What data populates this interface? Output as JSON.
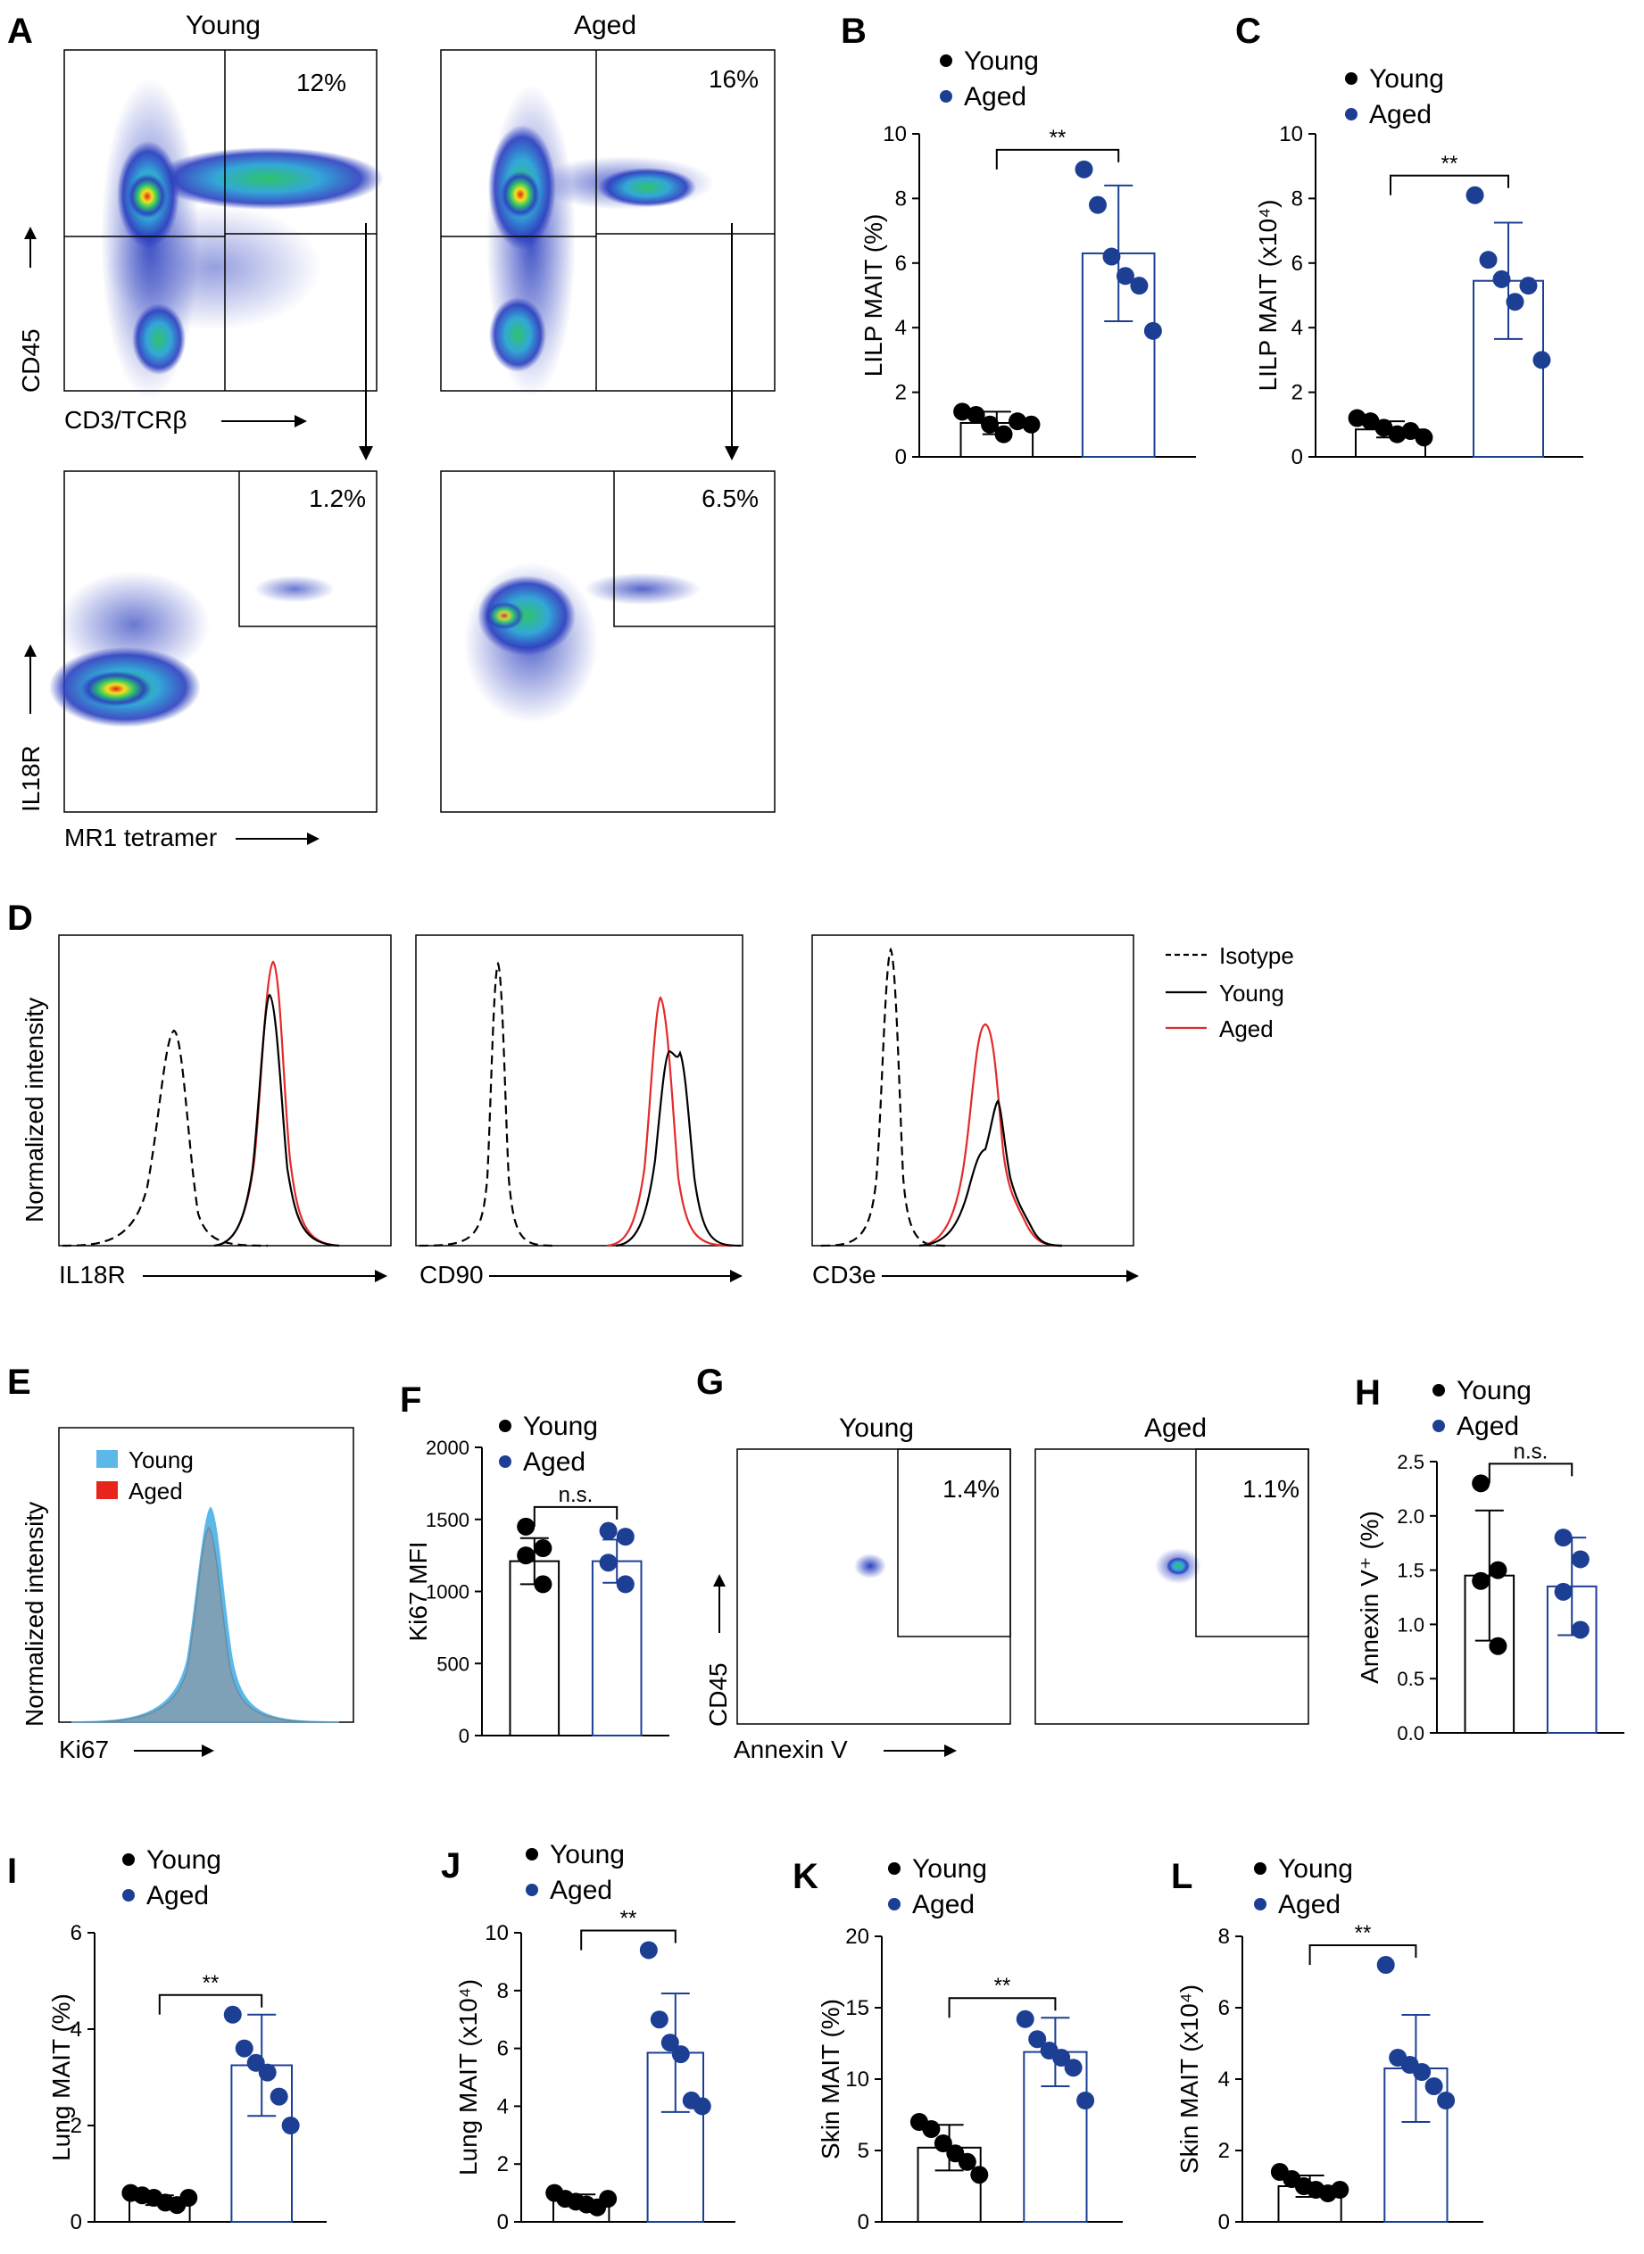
{
  "colors": {
    "young": "#000000",
    "aged_point": "#1c3f94",
    "aged_bar": "#1c3f94",
    "aged_hist": "#e32a2a",
    "young_fill_e": "#5bb8e8",
    "aged_fill_e": "#e8251c",
    "iso": "#000000"
  },
  "legend": {
    "young": "Young",
    "aged": "Aged",
    "isotype": "Isotype"
  },
  "panelA": {
    "letter": "A",
    "col_titles": [
      "Young",
      "Aged"
    ],
    "top_pcts": [
      "12%",
      "16%"
    ],
    "bottom_pcts": [
      "1.2%",
      "6.5%"
    ],
    "top_ylabel": "CD45",
    "top_xlabel": "CD3/TCRβ",
    "bottom_ylabel": "IL18R",
    "bottom_xlabel": "MR1 tetramer"
  },
  "panelD": {
    "letter": "D",
    "ylabel": "Normalized intensity",
    "xlabels": [
      "IL18R",
      "CD90",
      "CD3e"
    ]
  },
  "panelE": {
    "letter": "E",
    "ylabel": "Normalized intensity",
    "xlabel": "Ki67"
  },
  "panelG": {
    "letter": "G",
    "col_titles": [
      "Young",
      "Aged"
    ],
    "pcts": [
      "1.4%",
      "1.1%"
    ],
    "ylabel": "CD45",
    "xlabel": "Annexin V"
  },
  "chart_data": [
    {
      "panel": "B",
      "type": "bar",
      "categories": [
        "Young",
        "Aged"
      ],
      "ylabel": "LILP MAIT (%)",
      "ylim": [
        0,
        10
      ],
      "ticks": [
        0,
        2,
        4,
        6,
        8,
        10
      ],
      "significance": "**",
      "means": [
        1.05,
        6.3
      ],
      "sd": [
        0.35,
        2.1
      ],
      "points": [
        [
          1.4,
          1.3,
          1.0,
          0.7,
          1.1,
          1.0
        ],
        [
          8.9,
          7.8,
          6.2,
          5.6,
          5.3,
          3.9
        ]
      ]
    },
    {
      "panel": "C",
      "type": "bar",
      "categories": [
        "Young",
        "Aged"
      ],
      "ylabel": "LILP MAIT (x10⁴)",
      "ylim": [
        0,
        10
      ],
      "ticks": [
        0,
        2,
        4,
        6,
        8,
        10
      ],
      "significance": "**",
      "means": [
        0.85,
        5.45
      ],
      "sd": [
        0.25,
        1.8
      ],
      "points": [
        [
          1.2,
          1.1,
          0.9,
          0.7,
          0.8,
          0.6
        ],
        [
          8.1,
          6.1,
          5.5,
          4.8,
          5.3,
          3.0
        ]
      ]
    },
    {
      "panel": "F",
      "type": "bar",
      "categories": [
        "Young",
        "Aged"
      ],
      "ylabel": "Ki67 MFI",
      "ylim": [
        0,
        2000
      ],
      "ticks": [
        0,
        500,
        1000,
        1500,
        2000
      ],
      "significance": "n.s.",
      "means": [
        1210,
        1210
      ],
      "sd": [
        160,
        150
      ],
      "points": [
        [
          1450,
          1300,
          1250,
          1050
        ],
        [
          1420,
          1380,
          1200,
          1050
        ]
      ]
    },
    {
      "panel": "H",
      "type": "bar",
      "categories": [
        "Young",
        "Aged"
      ],
      "ylabel": "Annexin V⁺ (%)",
      "ylim": [
        0,
        2.5
      ],
      "ticks": [
        "0.0",
        "0.5",
        "1.0",
        "1.5",
        "2.0",
        "2.5"
      ],
      "significance": "n.s.",
      "means": [
        1.45,
        1.35
      ],
      "sd": [
        0.6,
        0.45
      ],
      "points": [
        [
          2.3,
          1.5,
          1.4,
          0.8
        ],
        [
          1.8,
          1.6,
          1.3,
          0.95
        ]
      ]
    },
    {
      "panel": "I",
      "type": "bar",
      "categories": [
        "Young",
        "Aged"
      ],
      "ylabel": "Lung MAIT (%)",
      "ylim": [
        0,
        6
      ],
      "ticks": [
        0,
        2,
        4,
        6
      ],
      "significance": "**",
      "means": [
        0.45,
        3.25
      ],
      "sd": [
        0.1,
        1.05
      ],
      "points": [
        [
          0.6,
          0.55,
          0.5,
          0.4,
          0.35,
          0.5
        ],
        [
          4.3,
          3.6,
          3.3,
          3.1,
          2.6,
          2.0
        ]
      ]
    },
    {
      "panel": "J",
      "type": "bar",
      "categories": [
        "Young",
        "Aged"
      ],
      "ylabel": "Lung MAIT (x10⁴)",
      "ylim": [
        0,
        10
      ],
      "ticks": [
        0,
        2,
        4,
        6,
        8,
        10
      ],
      "significance": "**",
      "means": [
        0.75,
        5.85
      ],
      "sd": [
        0.2,
        2.05
      ],
      "points": [
        [
          1.0,
          0.8,
          0.7,
          0.6,
          0.5,
          0.8
        ],
        [
          9.4,
          7.0,
          6.2,
          5.8,
          4.2,
          4.0
        ]
      ]
    },
    {
      "panel": "K",
      "type": "bar",
      "categories": [
        "Young",
        "Aged"
      ],
      "ylabel": "Skin MAIT (%)",
      "ylim": [
        0,
        20
      ],
      "ticks": [
        0,
        5,
        10,
        15,
        20
      ],
      "significance": "**",
      "means": [
        5.2,
        11.9
      ],
      "sd": [
        1.6,
        2.4
      ],
      "points": [
        [
          7.0,
          6.5,
          5.5,
          4.8,
          4.2,
          3.3
        ],
        [
          14.2,
          12.8,
          12.0,
          11.5,
          10.8,
          8.5
        ]
      ]
    },
    {
      "panel": "L",
      "type": "bar",
      "categories": [
        "Young",
        "Aged"
      ],
      "ylabel": "Skin MAIT (x10⁴)",
      "ylim": [
        0,
        8
      ],
      "ticks": [
        0,
        2,
        4,
        6,
        8
      ],
      "significance": "**",
      "means": [
        1.0,
        4.3
      ],
      "sd": [
        0.3,
        1.5
      ],
      "points": [
        [
          1.4,
          1.2,
          1.0,
          0.9,
          0.8,
          0.9
        ],
        [
          7.2,
          4.6,
          4.4,
          4.2,
          3.8,
          3.4
        ]
      ]
    }
  ]
}
